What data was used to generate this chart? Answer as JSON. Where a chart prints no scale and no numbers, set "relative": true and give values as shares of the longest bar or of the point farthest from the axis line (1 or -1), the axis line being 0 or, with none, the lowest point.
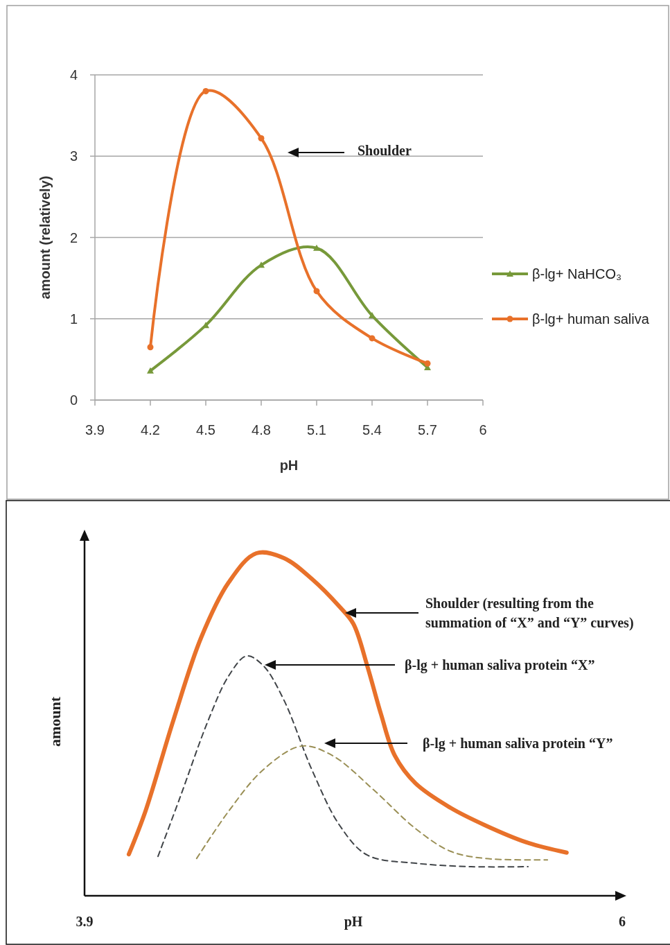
{
  "chart_data": [
    {
      "type": "line",
      "x": [
        4.2,
        4.5,
        4.8,
        5.1,
        5.4,
        5.7
      ],
      "xlim": [
        3.9,
        6
      ],
      "xticks": [
        3.9,
        4.2,
        4.5,
        4.8,
        5.1,
        5.4,
        5.7,
        6
      ],
      "ylim": [
        0,
        4
      ],
      "yticks": [
        0,
        1,
        2,
        3,
        4
      ],
      "grid": "y",
      "legend": "right",
      "xlabel": "pH",
      "ylabel": "amount (relatively)",
      "series": [
        {
          "name": "β-lg+ NaHCO₃",
          "color": "#77993a",
          "marker": "triangle",
          "values": [
            0.36,
            0.92,
            1.66,
            1.87,
            1.04,
            0.4
          ]
        },
        {
          "name": "β-lg+ human saliva",
          "color": "#e8712a",
          "marker": "circle",
          "values": [
            0.65,
            3.8,
            3.22,
            1.34,
            0.76,
            0.45
          ]
        }
      ],
      "annotations": [
        "Shoulder"
      ]
    },
    {
      "type": "line",
      "relative": true,
      "xlim": [
        3.9,
        6
      ],
      "xticks": [
        3.9,
        6
      ],
      "xlabel": "pH",
      "ylabel": "amount",
      "marker": "none",
      "series": [
        {
          "color": "#e8712a",
          "line_style": "solid",
          "x": [
            4.073,
            4.138,
            4.246,
            4.355,
            4.463,
            4.571,
            4.679,
            4.788,
            4.896,
            4.95,
            5.004,
            5.058,
            5.112,
            5.193,
            5.329,
            5.464,
            5.626,
            5.783
          ],
          "values": [
            0.121,
            0.247,
            0.51,
            0.753,
            0.915,
            1,
            0.986,
            0.925,
            0.844,
            0.794,
            0.672,
            0.53,
            0.409,
            0.328,
            0.257,
            0.206,
            0.156,
            0.126
          ]
        },
        {
          "color": "#404448",
          "line_style": "dashed",
          "x": [
            4.187,
            4.273,
            4.382,
            4.463,
            4.533,
            4.598,
            4.679,
            4.788,
            4.896,
            5.004,
            5.193,
            5.41,
            5.632
          ],
          "values": [
            0.115,
            0.287,
            0.51,
            0.642,
            0.7,
            0.672,
            0.571,
            0.368,
            0.206,
            0.119,
            0.095,
            0.085,
            0.085
          ]
        },
        {
          "color": "#9a8f55",
          "line_style": "dashed",
          "x": [
            4.338,
            4.463,
            4.598,
            4.747,
            4.869,
            5.031,
            5.193,
            5.329,
            5.464,
            5.708
          ],
          "values": [
            0.109,
            0.247,
            0.368,
            0.437,
            0.409,
            0.308,
            0.196,
            0.13,
            0.109,
            0.105
          ]
        }
      ],
      "annotations": [
        "Shoulder (resulting from the summation of “X” and “Y” curves)",
        "β-lg + human saliva protein “X”",
        "β-lg + human saliva protein “Y”"
      ]
    }
  ]
}
